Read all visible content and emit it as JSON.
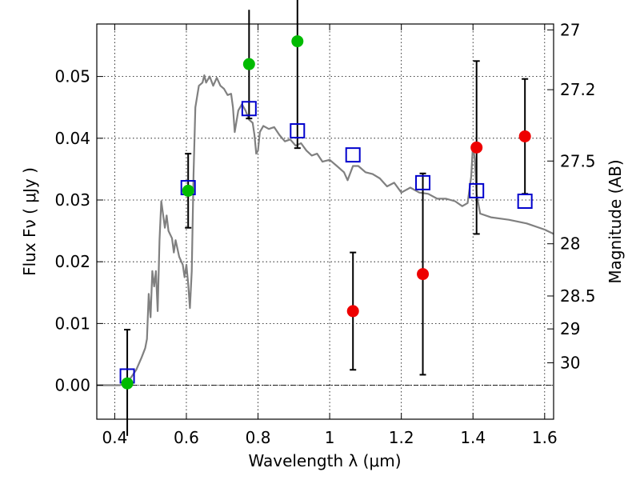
{
  "chart_data": {
    "type": "scatter",
    "title": "",
    "xlabel": "Wavelength  λ (μm)",
    "ylabel": "Flux  Fν  ( μJy )",
    "y2label": "Magnitude (AB)",
    "xlim": [
      0.35,
      1.625
    ],
    "ylim": [
      -0.0055,
      0.0585
    ],
    "grid": true,
    "x_ticks": [
      0.4,
      0.6,
      0.8,
      1.0,
      1.2,
      1.4,
      1.6
    ],
    "x_tick_labels": [
      "0.4",
      "0.6",
      "0.8",
      "1",
      "1.2",
      "1.4",
      "1.6"
    ],
    "y_ticks": [
      0.0,
      0.01,
      0.02,
      0.03,
      0.04,
      0.05
    ],
    "y_tick_labels": [
      "0.00",
      "0.01",
      "0.02",
      "0.03",
      "0.04",
      "0.05"
    ],
    "mag_ticks": [
      27,
      27.2,
      27.5,
      28,
      28.5,
      29,
      30
    ],
    "mag_tick_labels": [
      "27",
      "27.2",
      "27.5",
      "28",
      "28.5",
      "29",
      "30"
    ],
    "colors": {
      "model": "#808080",
      "model_points": "#0000cc",
      "detections": "#00bb00",
      "non_detections": "#ee0000",
      "errorbar": "#000000",
      "zero_line": "#000000"
    },
    "series": [
      {
        "type": "line",
        "points": [
          [
            0.35,
            0.0
          ],
          [
            0.415,
            0.0
          ],
          [
            0.43,
            0.0003
          ],
          [
            0.445,
            0.0012
          ],
          [
            0.46,
            0.0025
          ],
          [
            0.475,
            0.0045
          ],
          [
            0.485,
            0.006
          ],
          [
            0.49,
            0.0075
          ],
          [
            0.495,
            0.0148
          ],
          [
            0.5,
            0.011
          ],
          [
            0.505,
            0.0185
          ],
          [
            0.51,
            0.016
          ],
          [
            0.515,
            0.0185
          ],
          [
            0.52,
            0.012
          ],
          [
            0.525,
            0.0235
          ],
          [
            0.53,
            0.0298
          ],
          [
            0.54,
            0.0255
          ],
          [
            0.545,
            0.0275
          ],
          [
            0.55,
            0.025
          ],
          [
            0.56,
            0.0238
          ],
          [
            0.565,
            0.0215
          ],
          [
            0.57,
            0.0235
          ],
          [
            0.58,
            0.0208
          ],
          [
            0.59,
            0.0195
          ],
          [
            0.595,
            0.0175
          ],
          [
            0.6,
            0.0195
          ],
          [
            0.605,
            0.0165
          ],
          [
            0.61,
            0.0125
          ],
          [
            0.615,
            0.0185
          ],
          [
            0.62,
            0.034
          ],
          [
            0.625,
            0.045
          ],
          [
            0.635,
            0.0485
          ],
          [
            0.645,
            0.049
          ],
          [
            0.65,
            0.0502
          ],
          [
            0.655,
            0.049
          ],
          [
            0.665,
            0.05
          ],
          [
            0.675,
            0.0485
          ],
          [
            0.685,
            0.0498
          ],
          [
            0.695,
            0.0485
          ],
          [
            0.705,
            0.048
          ],
          [
            0.715,
            0.047
          ],
          [
            0.725,
            0.0472
          ],
          [
            0.73,
            0.045
          ],
          [
            0.735,
            0.041
          ],
          [
            0.745,
            0.0445
          ],
          [
            0.755,
            0.0455
          ],
          [
            0.765,
            0.0445
          ],
          [
            0.775,
            0.043
          ],
          [
            0.785,
            0.0425
          ],
          [
            0.79,
            0.0405
          ],
          [
            0.795,
            0.0375
          ],
          [
            0.8,
            0.038
          ],
          [
            0.805,
            0.041
          ],
          [
            0.815,
            0.042
          ],
          [
            0.83,
            0.0415
          ],
          [
            0.845,
            0.0418
          ],
          [
            0.86,
            0.0405
          ],
          [
            0.875,
            0.0395
          ],
          [
            0.89,
            0.0398
          ],
          [
            0.905,
            0.0388
          ],
          [
            0.92,
            0.0392
          ],
          [
            0.935,
            0.038
          ],
          [
            0.95,
            0.0372
          ],
          [
            0.965,
            0.0375
          ],
          [
            0.98,
            0.0362
          ],
          [
            1.0,
            0.0365
          ],
          [
            1.02,
            0.0355
          ],
          [
            1.04,
            0.0345
          ],
          [
            1.05,
            0.0332
          ],
          [
            1.065,
            0.0355
          ],
          [
            1.08,
            0.0355
          ],
          [
            1.1,
            0.0345
          ],
          [
            1.12,
            0.0342
          ],
          [
            1.14,
            0.0335
          ],
          [
            1.16,
            0.0322
          ],
          [
            1.18,
            0.0328
          ],
          [
            1.2,
            0.0312
          ],
          [
            1.225,
            0.032
          ],
          [
            1.25,
            0.0312
          ],
          [
            1.275,
            0.031
          ],
          [
            1.3,
            0.0302
          ],
          [
            1.325,
            0.0302
          ],
          [
            1.35,
            0.0298
          ],
          [
            1.37,
            0.029
          ],
          [
            1.385,
            0.0295
          ],
          [
            1.395,
            0.0338
          ],
          [
            1.4,
            0.039
          ],
          [
            1.405,
            0.0365
          ],
          [
            1.41,
            0.031
          ],
          [
            1.42,
            0.0278
          ],
          [
            1.45,
            0.0272
          ],
          [
            1.5,
            0.0268
          ],
          [
            1.55,
            0.0262
          ],
          [
            1.6,
            0.0252
          ],
          [
            1.625,
            0.0245
          ]
        ]
      },
      {
        "type": "scatter",
        "marker": "open-square",
        "points": [
          [
            0.435,
            0.0015
          ],
          [
            0.605,
            0.032
          ],
          [
            0.775,
            0.0448
          ],
          [
            0.91,
            0.0412
          ],
          [
            1.065,
            0.0373
          ],
          [
            1.26,
            0.0328
          ],
          [
            1.41,
            0.0315
          ],
          [
            1.545,
            0.0298
          ]
        ]
      },
      {
        "type": "scatter",
        "marker": "filled-circle",
        "color_key": "detections",
        "points": [
          {
            "x": 0.435,
            "y": 0.0003,
            "err_low": 0.0085,
            "err_high": 0.0087
          },
          {
            "x": 0.605,
            "y": 0.0315,
            "err_low": 0.006,
            "err_high": 0.006
          },
          {
            "x": 0.775,
            "y": 0.052,
            "err_low": 0.0088,
            "err_high": 0.0088
          },
          {
            "x": 0.91,
            "y": 0.0557,
            "err_low": 0.0173,
            "err_high": 0.0173
          }
        ]
      },
      {
        "type": "scatter",
        "marker": "filled-circle",
        "color_key": "non_detections",
        "points": [
          {
            "x": 1.065,
            "y": 0.012,
            "err_low": 0.0095,
            "err_high": 0.0095
          },
          {
            "x": 1.26,
            "y": 0.018,
            "err_low": 0.0163,
            "err_high": 0.0163
          },
          {
            "x": 1.41,
            "y": 0.0385,
            "err_low": 0.014,
            "err_high": 0.014
          },
          {
            "x": 1.545,
            "y": 0.0403,
            "err_low": 0.0093,
            "err_high": 0.0093
          }
        ]
      }
    ]
  }
}
